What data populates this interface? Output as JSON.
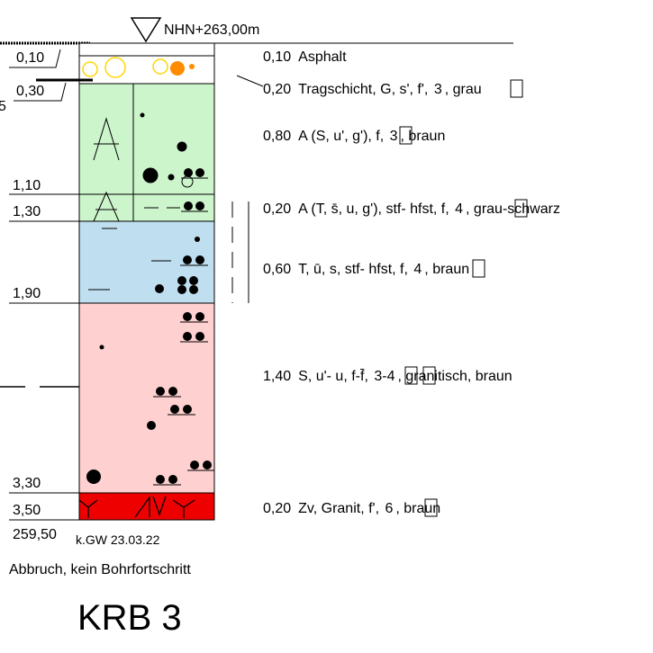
{
  "reference_level": "NHN+263,00m",
  "depth_labels": [
    "0,10",
    "0,30",
    "1,10",
    "1,30",
    "1,90",
    "3,30",
    "3,50"
  ],
  "left_partial": "5",
  "bottom_elevation": "259,50",
  "groundwater_note": "k.GW 23.03.22",
  "termination_note": "Abbruch, kein Bohrfortschritt",
  "borehole_name": "KRB 3",
  "layers": [
    {
      "name": "asphalt",
      "color": "#ffffff",
      "thickness": "0,10",
      "description": "Asphalt"
    },
    {
      "name": "tragschicht",
      "color": "#ffffff",
      "thickness": "0,20",
      "description": "Tragschicht, G, s', f', ",
      "class": "3",
      "suffix": ", grau"
    },
    {
      "name": "a-fill-1",
      "color": "#ccf5cc",
      "thickness": "0,80",
      "description": "A (S, u', g'), f, ",
      "class": "3",
      "suffix": ", braun"
    },
    {
      "name": "a-fill-2",
      "color": "#ccf5cc",
      "thickness": "0,20",
      "description": "A (T, s̄, u, g'), stf- hfst, f, ",
      "class": "4",
      "suffix": ", grau-schwarz"
    },
    {
      "name": "clay",
      "color": "#bfdff0",
      "thickness": "0,60",
      "description": "T, ū, s, stf- hfst, f, ",
      "class": "4",
      "suffix": ", braun"
    },
    {
      "name": "sand",
      "color": "#ffd0d0",
      "thickness": "1,40",
      "description": "S, u'- u, f-f̄, ",
      "class": "3",
      "class2": "4",
      "suffix": ", granitisch, braun"
    },
    {
      "name": "granite",
      "color": "#ee0000",
      "thickness": "0,20",
      "description": "Zv, Granit, f', ",
      "class": "6",
      "suffix": ", braun"
    }
  ],
  "symbols": {
    "asphalt_circle_color": "#ffd700",
    "asphalt_dot_color": "#ff8c00"
  }
}
